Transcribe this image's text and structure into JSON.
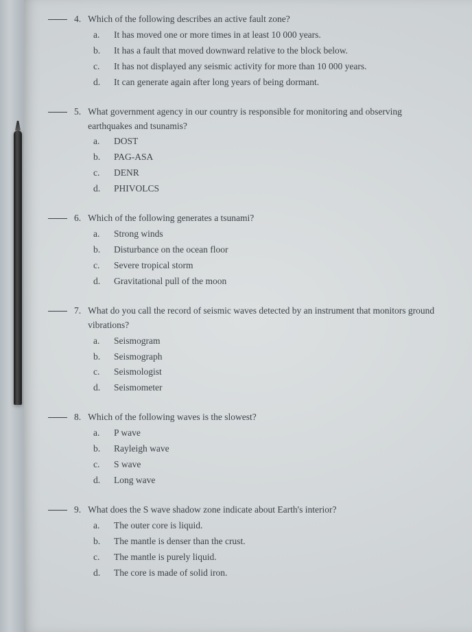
{
  "questions": [
    {
      "number": "4.",
      "stem": "Which of the following describes an active fault zone?",
      "options": [
        {
          "letter": "a.",
          "text": "It has moved one or more times in at least 10 000 years."
        },
        {
          "letter": "b.",
          "text": "It has a fault that moved downward relative to the block below."
        },
        {
          "letter": "c.",
          "text": "It has not displayed any seismic activity for more than 10 000 years."
        },
        {
          "letter": "d.",
          "text": "It can generate again after long years of being dormant."
        }
      ]
    },
    {
      "number": "5.",
      "stem": "What government agency in our country is responsible for monitoring and observing earthquakes and tsunamis?",
      "options": [
        {
          "letter": "a.",
          "text": "DOST"
        },
        {
          "letter": "b.",
          "text": "PAG-ASA"
        },
        {
          "letter": "c.",
          "text": "DENR"
        },
        {
          "letter": "d.",
          "text": "PHIVOLCS"
        }
      ]
    },
    {
      "number": "6.",
      "stem": "Which of the following generates a tsunami?",
      "options": [
        {
          "letter": "a.",
          "text": "Strong winds"
        },
        {
          "letter": "b.",
          "text": "Disturbance on the ocean floor"
        },
        {
          "letter": "c.",
          "text": "Severe tropical storm"
        },
        {
          "letter": "d.",
          "text": "Gravitational pull of the moon"
        }
      ]
    },
    {
      "number": "7.",
      "stem": "What do you call the record of seismic waves detected by an instrument that monitors ground vibrations?",
      "options": [
        {
          "letter": "a.",
          "text": "Seismogram"
        },
        {
          "letter": "b.",
          "text": "Seismograph"
        },
        {
          "letter": "c.",
          "text": "Seismologist"
        },
        {
          "letter": "d.",
          "text": "Seismometer"
        }
      ]
    },
    {
      "number": "8.",
      "stem": "Which of the following waves is the slowest?",
      "options": [
        {
          "letter": "a.",
          "text": "P wave"
        },
        {
          "letter": "b.",
          "text": "Rayleigh wave"
        },
        {
          "letter": "c.",
          "text": "S wave"
        },
        {
          "letter": "d.",
          "text": "Long wave"
        }
      ]
    },
    {
      "number": "9.",
      "stem": "What does the S wave shadow zone indicate about Earth's interior?",
      "options": [
        {
          "letter": "a.",
          "text": "The outer core is liquid."
        },
        {
          "letter": "b.",
          "text": "The mantle is denser than the crust."
        },
        {
          "letter": "c.",
          "text": "The mantle is purely liquid."
        },
        {
          "letter": "d.",
          "text": "The core is made of solid iron."
        }
      ]
    }
  ]
}
